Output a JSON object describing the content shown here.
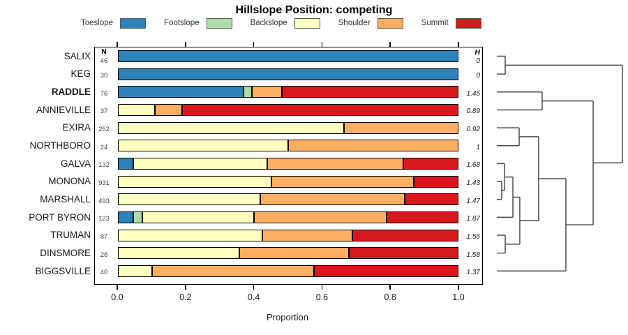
{
  "title": "Hillslope Position: competing",
  "legend": [
    {
      "label": "Toeslope",
      "color": "#2B83BA"
    },
    {
      "label": "Footslope",
      "color": "#ABDDA4"
    },
    {
      "label": "Backslope",
      "color": "#FFFFBF"
    },
    {
      "label": "Shoulder",
      "color": "#FDAE61"
    },
    {
      "label": "Summit",
      "color": "#D7191C"
    }
  ],
  "chart_data": {
    "type": "bar",
    "stacked": true,
    "orientation": "horizontal",
    "xlabel": "Proportion",
    "xlim": [
      0.0,
      1.0
    ],
    "x_ticks": [
      {
        "label": "0.0",
        "value": 0.0
      },
      {
        "label": "0.2",
        "value": 0.2
      },
      {
        "label": "0.4",
        "value": 0.4
      },
      {
        "label": "0.6",
        "value": 0.6
      },
      {
        "label": "0.8",
        "value": 0.8
      },
      {
        "label": "1.0",
        "value": 1.0
      }
    ],
    "categories": [
      "Toeslope",
      "Footslope",
      "Backslope",
      "Shoulder",
      "Summit"
    ],
    "colors": [
      "#2B83BA",
      "#ABDDA4",
      "#FFFFBF",
      "#FDAE61",
      "#D7191C"
    ],
    "n_header": "N",
    "h_header": "H",
    "rows": [
      {
        "name": "SALIX",
        "bold": false,
        "n": 46,
        "h": "0",
        "values": [
          1,
          0,
          0,
          0,
          0
        ]
      },
      {
        "name": "KEG",
        "bold": false,
        "n": 30,
        "h": "0",
        "values": [
          1,
          0,
          0,
          0,
          0
        ]
      },
      {
        "name": "RADDLE",
        "bold": true,
        "n": 76,
        "h": "1.45",
        "values": [
          0.368,
          0.026,
          0,
          0.088,
          0.518
        ]
      },
      {
        "name": "ANNIEVILLE",
        "bold": false,
        "n": 37,
        "h": "0.89",
        "values": [
          0,
          0,
          0.108,
          0.081,
          0.811
        ]
      },
      {
        "name": "EXIRA",
        "bold": false,
        "n": 252,
        "h": "0.92",
        "values": [
          0,
          0,
          0.663,
          0.337,
          0
        ]
      },
      {
        "name": "NORTHBORO",
        "bold": false,
        "n": 24,
        "h": "1",
        "values": [
          0,
          0,
          0.5,
          0.5,
          0
        ]
      },
      {
        "name": "GALVA",
        "bold": false,
        "n": 132,
        "h": "1.68",
        "values": [
          0.045,
          0,
          0.393,
          0.4,
          0.162
        ]
      },
      {
        "name": "MONONA",
        "bold": false,
        "n": 931,
        "h": "1.43",
        "values": [
          0,
          0,
          0.45,
          0.419,
          0.131
        ]
      },
      {
        "name": "MARSHALL",
        "bold": false,
        "n": 493,
        "h": "1.47",
        "values": [
          0,
          0,
          0.419,
          0.424,
          0.157
        ]
      },
      {
        "name": "PORT BYRON",
        "bold": false,
        "n": 123,
        "h": "1.87",
        "values": [
          0.045,
          0.027,
          0.327,
          0.389,
          0.212
        ]
      },
      {
        "name": "TRUMAN",
        "bold": false,
        "n": 87,
        "h": "1.56",
        "values": [
          0,
          0,
          0.425,
          0.264,
          0.311
        ]
      },
      {
        "name": "DINSMORE",
        "bold": false,
        "n": 28,
        "h": "1.58",
        "values": [
          0,
          0,
          0.357,
          0.321,
          0.322
        ]
      },
      {
        "name": "BIGGSVILLE",
        "bold": false,
        "n": 40,
        "h": "1.37",
        "values": [
          0,
          0,
          0.1,
          0.475,
          0.425
        ]
      }
    ],
    "dendrogram": {
      "merges": [
        {
          "id": "m1",
          "a": "SALIX",
          "b": "KEG",
          "height": 0.067
        },
        {
          "id": "m2",
          "a": "RADDLE",
          "b": "ANNIEVILLE",
          "height": 0.361
        },
        {
          "id": "m3",
          "a": "EXIRA",
          "b": "NORTHBORO",
          "height": 0.178
        },
        {
          "id": "m4",
          "a": "MONONA",
          "b": "MARSHALL",
          "height": 0.039
        },
        {
          "id": "m5",
          "a": "GALVA",
          "b": "m4",
          "height": 0.061
        },
        {
          "id": "m6",
          "a": "m5",
          "b": "PORT BYRON",
          "height": 0.128
        },
        {
          "id": "m7",
          "a": "TRUMAN",
          "b": "DINSMORE",
          "height": 0.067
        },
        {
          "id": "m8",
          "a": "m6",
          "b": "m7",
          "height": 0.183
        },
        {
          "id": "m9",
          "a": "m3",
          "b": "m8",
          "height": 0.333
        },
        {
          "id": "m10",
          "a": "m9",
          "b": "BIGGSVILLE",
          "height": 0.55
        },
        {
          "id": "m11",
          "a": "m2",
          "b": "m10",
          "height": 0.767
        },
        {
          "id": "m12",
          "a": "m1",
          "b": "m11",
          "height": 1.0
        }
      ]
    }
  }
}
